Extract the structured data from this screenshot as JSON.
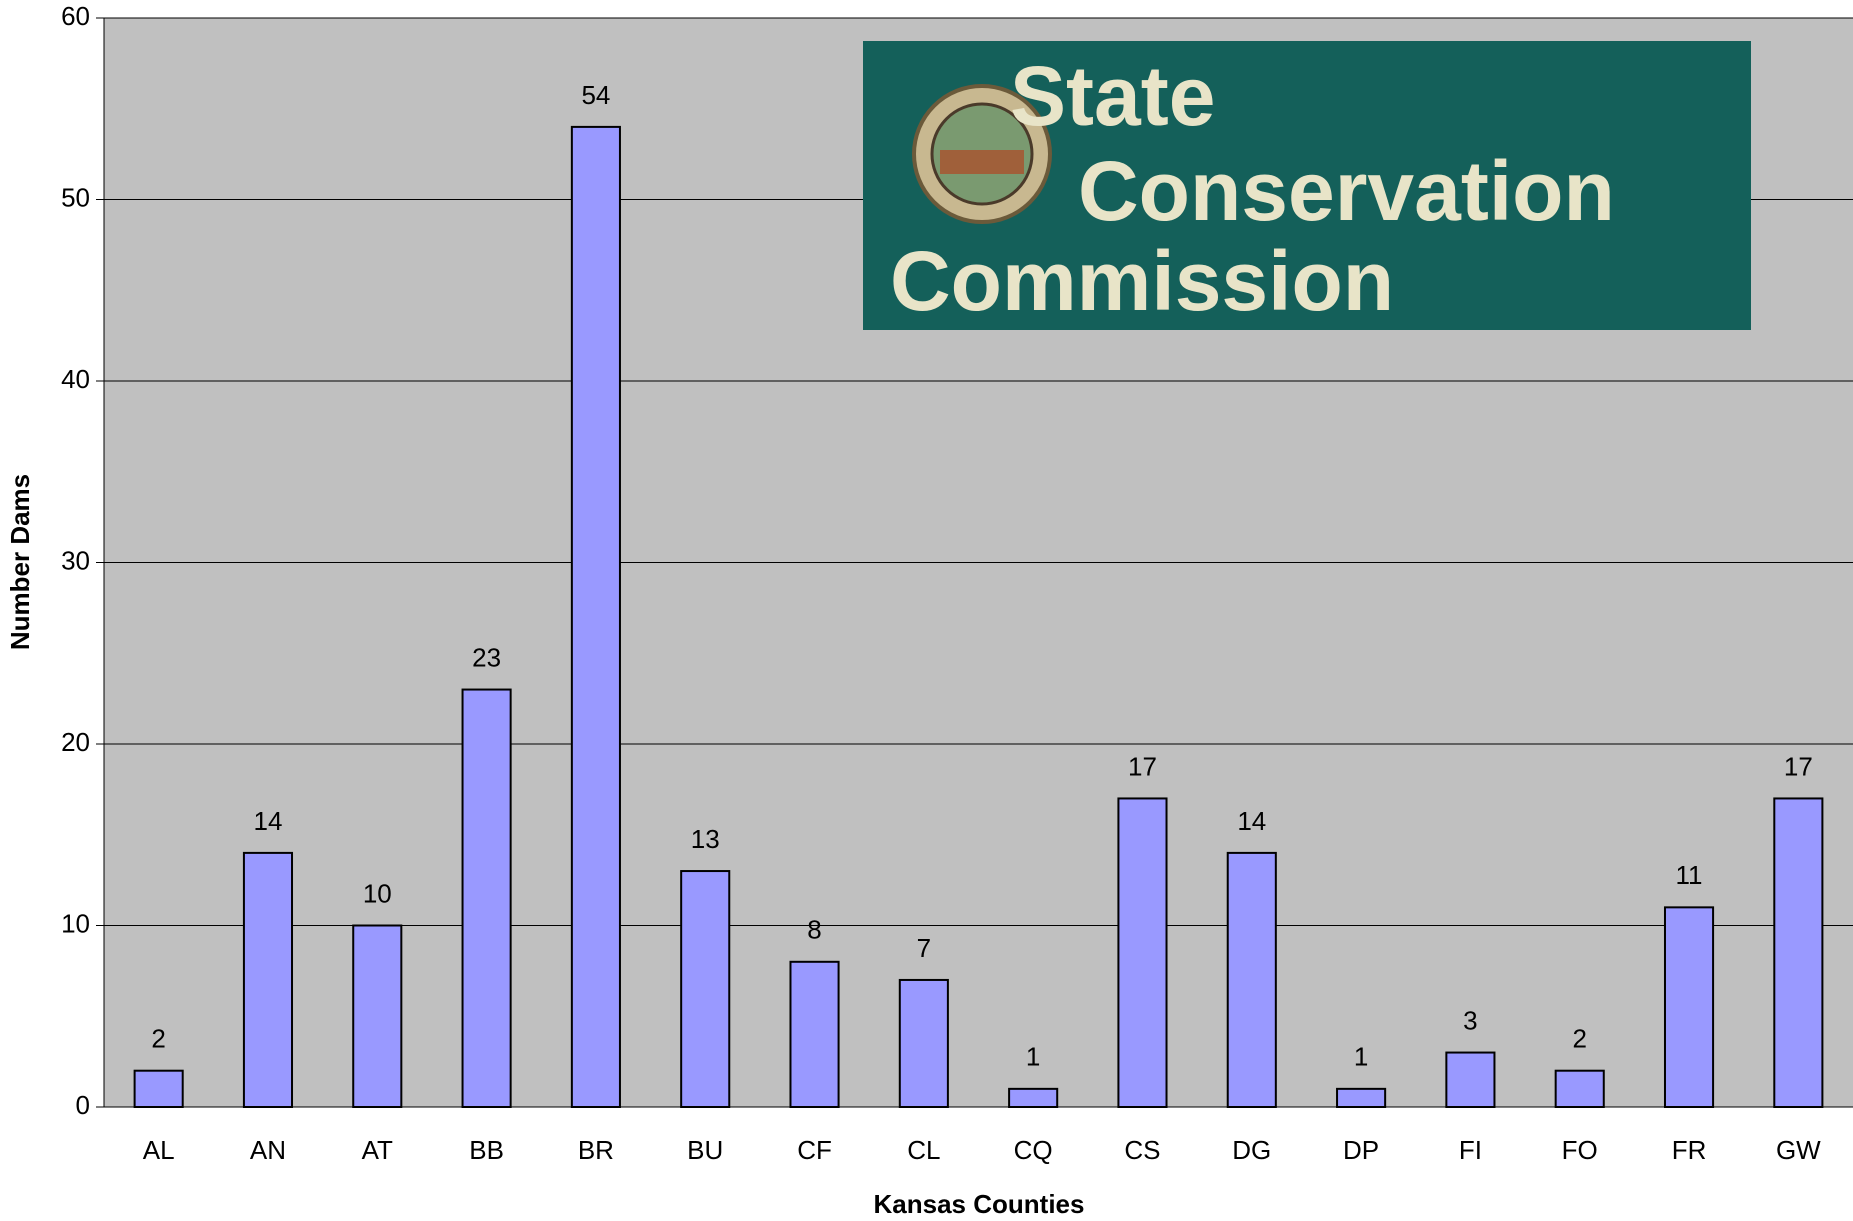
{
  "chart_data": {
    "type": "bar",
    "x_label": "Kansas Counties",
    "y_label": "Number Dams",
    "logo": [
      "State",
      "Conservation",
      "Commission"
    ],
    "categories": [
      "AL",
      "AN",
      "AT",
      "BB",
      "BR",
      "BU",
      "CF",
      "CL",
      "CQ",
      "CS",
      "DG",
      "DP",
      "FI",
      "FO",
      "FR",
      "GW"
    ],
    "values": [
      2,
      14,
      10,
      23,
      54,
      13,
      8,
      7,
      1,
      17,
      14,
      1,
      3,
      2,
      11,
      17
    ],
    "color": "#9999ff",
    "ylim": [
      0,
      60
    ],
    "yticks": [
      0,
      10,
      20,
      30,
      40,
      50,
      60
    ],
    "grid": true
  }
}
